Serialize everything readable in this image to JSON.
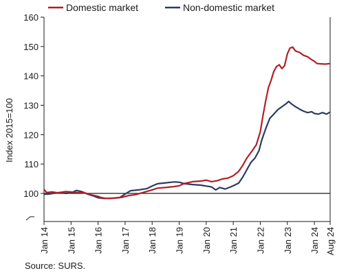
{
  "chart_data": {
    "type": "line",
    "title": "",
    "xlabel": "",
    "ylabel": "Index 2015=100",
    "ylim": [
      70,
      160
    ],
    "yticks": [
      100,
      110,
      120,
      130,
      140,
      150,
      160
    ],
    "x_tick_labels": [
      "Jan 14",
      "Jan 15",
      "Jan 16",
      "Jan 17",
      "Jan 18",
      "Jan 19",
      "Jan 20",
      "Jan 21",
      "Jan 22",
      "Jan 23",
      "Jan 24",
      "Aug 24"
    ],
    "x_tick_positions": [
      2014.0,
      2015.0,
      2016.0,
      2017.0,
      2018.0,
      2019.0,
      2020.0,
      2021.0,
      2022.0,
      2023.0,
      2024.0,
      2024.583
    ],
    "xlim": [
      2014.0,
      2024.583
    ],
    "reference_line": 100,
    "legend": {
      "placement": "top-left"
    },
    "series": [
      {
        "name": "Domestic market",
        "color": "#b01f24",
        "points": [
          [
            2014.0,
            101.3
          ],
          [
            2014.1,
            100.3
          ],
          [
            2014.3,
            100.5
          ],
          [
            2014.5,
            100.2
          ],
          [
            2014.8,
            100.6
          ],
          [
            2015.0,
            100.5
          ],
          [
            2015.2,
            100.3
          ],
          [
            2015.5,
            100.2
          ],
          [
            2015.7,
            99.6
          ],
          [
            2016.0,
            99.0
          ],
          [
            2016.1,
            98.6
          ],
          [
            2016.3,
            98.3
          ],
          [
            2016.6,
            98.4
          ],
          [
            2016.9,
            98.7
          ],
          [
            2017.1,
            99.2
          ],
          [
            2017.4,
            99.6
          ],
          [
            2017.7,
            100.4
          ],
          [
            2018.0,
            101.2
          ],
          [
            2018.2,
            101.8
          ],
          [
            2018.5,
            102.0
          ],
          [
            2018.8,
            102.3
          ],
          [
            2019.0,
            102.6
          ],
          [
            2019.2,
            103.4
          ],
          [
            2019.5,
            104.0
          ],
          [
            2019.8,
            104.2
          ],
          [
            2020.0,
            104.5
          ],
          [
            2020.2,
            104.0
          ],
          [
            2020.4,
            104.3
          ],
          [
            2020.6,
            104.9
          ],
          [
            2020.8,
            105.2
          ],
          [
            2021.0,
            106.0
          ],
          [
            2021.2,
            107.5
          ],
          [
            2021.35,
            109.5
          ],
          [
            2021.5,
            112.0
          ],
          [
            2021.7,
            114.5
          ],
          [
            2021.85,
            116.5
          ],
          [
            2022.0,
            121.0
          ],
          [
            2022.1,
            126.5
          ],
          [
            2022.2,
            131.5
          ],
          [
            2022.3,
            136.0
          ],
          [
            2022.4,
            138.5
          ],
          [
            2022.5,
            141.5
          ],
          [
            2022.6,
            143.2
          ],
          [
            2022.7,
            143.8
          ],
          [
            2022.8,
            142.5
          ],
          [
            2022.9,
            143.5
          ],
          [
            2023.0,
            147.5
          ],
          [
            2023.1,
            149.5
          ],
          [
            2023.2,
            149.8
          ],
          [
            2023.3,
            148.5
          ],
          [
            2023.45,
            148.0
          ],
          [
            2023.6,
            147.0
          ],
          [
            2023.75,
            146.5
          ],
          [
            2023.9,
            145.5
          ],
          [
            2024.0,
            145.0
          ],
          [
            2024.1,
            144.2
          ],
          [
            2024.25,
            144.1
          ],
          [
            2024.4,
            144.0
          ],
          [
            2024.583,
            144.2
          ]
        ]
      },
      {
        "name": "Non-domestic market",
        "color": "#2a3a5f",
        "points": [
          [
            2014.0,
            99.7
          ],
          [
            2014.2,
            99.8
          ],
          [
            2014.4,
            100.1
          ],
          [
            2014.6,
            100.3
          ],
          [
            2014.8,
            100.0
          ],
          [
            2015.0,
            100.2
          ],
          [
            2015.2,
            101.0
          ],
          [
            2015.4,
            100.6
          ],
          [
            2015.6,
            99.8
          ],
          [
            2015.8,
            99.2
          ],
          [
            2016.0,
            98.5
          ],
          [
            2016.2,
            98.3
          ],
          [
            2016.4,
            98.3
          ],
          [
            2016.6,
            98.4
          ],
          [
            2016.8,
            98.6
          ],
          [
            2017.0,
            99.8
          ],
          [
            2017.2,
            100.9
          ],
          [
            2017.5,
            101.2
          ],
          [
            2017.8,
            101.6
          ],
          [
            2018.0,
            102.5
          ],
          [
            2018.2,
            103.3
          ],
          [
            2018.5,
            103.6
          ],
          [
            2018.8,
            103.9
          ],
          [
            2019.0,
            103.8
          ],
          [
            2019.2,
            103.3
          ],
          [
            2019.5,
            103.0
          ],
          [
            2019.8,
            102.8
          ],
          [
            2020.0,
            102.5
          ],
          [
            2020.2,
            102.2
          ],
          [
            2020.35,
            101.2
          ],
          [
            2020.5,
            102.0
          ],
          [
            2020.7,
            101.5
          ],
          [
            2020.9,
            102.2
          ],
          [
            2021.0,
            102.6
          ],
          [
            2021.2,
            103.5
          ],
          [
            2021.35,
            105.5
          ],
          [
            2021.5,
            108.0
          ],
          [
            2021.65,
            110.5
          ],
          [
            2021.8,
            112.0
          ],
          [
            2021.95,
            114.5
          ],
          [
            2022.05,
            118.0
          ],
          [
            2022.2,
            122.0
          ],
          [
            2022.35,
            125.5
          ],
          [
            2022.5,
            127.0
          ],
          [
            2022.65,
            128.5
          ],
          [
            2022.8,
            129.5
          ],
          [
            2022.95,
            130.5
          ],
          [
            2023.05,
            131.3
          ],
          [
            2023.15,
            130.5
          ],
          [
            2023.3,
            129.5
          ],
          [
            2023.45,
            128.7
          ],
          [
            2023.6,
            128.0
          ],
          [
            2023.75,
            127.5
          ],
          [
            2023.9,
            127.8
          ],
          [
            2024.0,
            127.2
          ],
          [
            2024.15,
            127.0
          ],
          [
            2024.3,
            127.5
          ],
          [
            2024.45,
            127.0
          ],
          [
            2024.583,
            127.7
          ]
        ]
      }
    ]
  },
  "source_text": "Source: SURS."
}
